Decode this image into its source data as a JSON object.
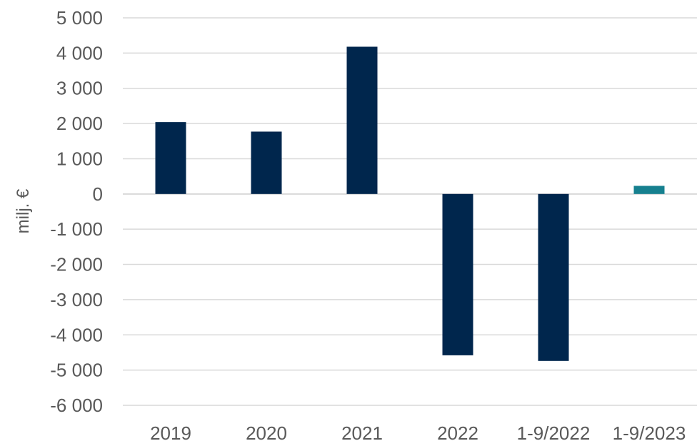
{
  "chart_data": {
    "type": "bar",
    "title": "",
    "xlabel": "",
    "ylabel": "milj. €",
    "categories": [
      "2019",
      "2020",
      "2021",
      "2022",
      "1-9/2022",
      "1-9/2023"
    ],
    "values": [
      2040,
      1770,
      4180,
      -4580,
      -4740,
      230
    ],
    "bar_colors": [
      "#00264d",
      "#00264d",
      "#00264d",
      "#00264d",
      "#00264d",
      "#16808f"
    ],
    "ylim": [
      -6000,
      5000
    ],
    "y_ticks": [
      5000,
      4000,
      3000,
      2000,
      1000,
      0,
      -1000,
      -2000,
      -3000,
      -4000,
      -5000,
      -6000
    ],
    "y_tick_labels": [
      "5 000",
      "4 000",
      "3 000",
      "2 000",
      "1 000",
      "0",
      "-1 000",
      "-2 000",
      "-3 000",
      "-4 000",
      "-5 000",
      "-6 000"
    ],
    "grid": true,
    "grid_color": "#d9d9d9",
    "legend": "none"
  }
}
